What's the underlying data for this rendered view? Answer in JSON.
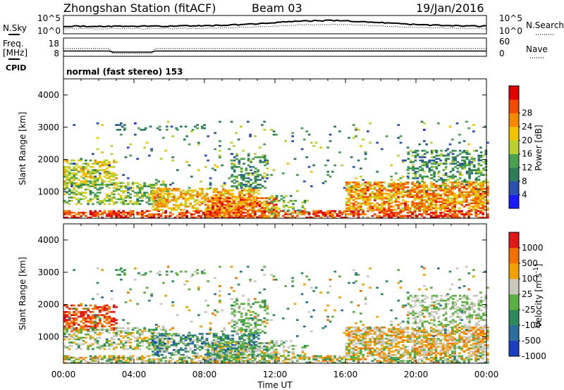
{
  "header": {
    "station": "Zhongshan Station (fitACF)",
    "beam": "Beam 03",
    "date": "19/Jan/2016"
  },
  "top_panels": {
    "noise_left_label": "N.Sky",
    "noise_right_label": "N.Search",
    "noise_left_ticks": [
      "10^5",
      "10^0"
    ],
    "noise_right_ticks": [
      "10^5",
      "10^0"
    ],
    "freq_label_line1": "Freq.",
    "freq_label_line2": "[MHz]",
    "freq_ticks": [
      "18",
      "8"
    ],
    "nave_label": "Nave",
    "nave_ticks": [
      "60",
      "0"
    ],
    "cpid_label": "CPID",
    "cpid_text": "normal (fast stereo) 153"
  },
  "chart_data": [
    {
      "type": "heatmap",
      "title": "",
      "xlabel": "",
      "ylabel": "Slant Range [km]",
      "ylim": [
        180,
        4500
      ],
      "yticks": [
        "1000",
        "2000",
        "3000",
        "4000"
      ],
      "colorbar_label": "Power [dB]",
      "colorbar_ticks": [
        "4",
        "8",
        "12",
        "16",
        "20",
        "24",
        "28"
      ],
      "colorscale": [
        "#1a1aff",
        "#2b50b0",
        "#2e7d5a",
        "#48a050",
        "#b8d030",
        "#f2c400",
        "#f58a00",
        "#f04a00",
        "#e00000"
      ]
    },
    {
      "type": "heatmap",
      "title": "",
      "xlabel": "Time UT",
      "ylabel": "Slant Range [km]",
      "ylim": [
        180,
        4500
      ],
      "yticks": [
        "1000",
        "2000",
        "3000",
        "4000"
      ],
      "colorbar_label": "Velocity [m s^-1]",
      "colorbar_ticks": [
        "1000",
        "500",
        "100",
        "25",
        "-25",
        "-100",
        "-500",
        "-1000"
      ],
      "colorscale": [
        "#1a40c0",
        "#2e6e9e",
        "#2e8a5a",
        "#5ab040",
        "#c8c8be",
        "#f0a000",
        "#f07000",
        "#e01818"
      ]
    }
  ],
  "time_axis": {
    "label": "Time UT",
    "ticks": [
      "00:00",
      "04:00",
      "08:00",
      "12:00",
      "16:00",
      "20:00",
      "00:00"
    ]
  }
}
